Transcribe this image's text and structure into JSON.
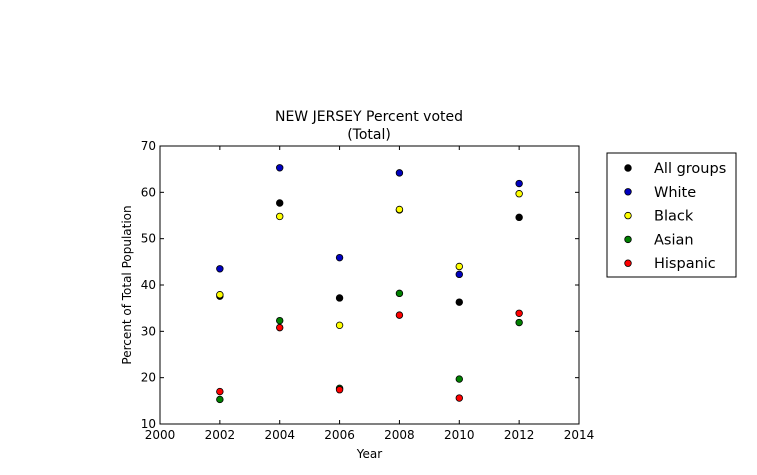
{
  "chart_data": {
    "type": "scatter",
    "title": "NEW JERSEY Percent voted",
    "subtitle": "(Total)",
    "xlabel": "Year",
    "ylabel": "Percent of Total Population",
    "xlim": [
      2000,
      2014
    ],
    "ylim": [
      10,
      70
    ],
    "xticks": [
      2000,
      2002,
      2004,
      2006,
      2008,
      2010,
      2012,
      2014
    ],
    "yticks": [
      10,
      20,
      30,
      40,
      50,
      60,
      70
    ],
    "grid": false,
    "legend": "outside-right",
    "x": [
      2002,
      2004,
      2006,
      2008,
      2010,
      2012
    ],
    "series": [
      {
        "name": "All groups",
        "color": "#000000",
        "values": [
          37.6,
          57.7,
          37.2,
          56.2,
          36.3,
          54.6
        ]
      },
      {
        "name": "White",
        "color": "#0000bf",
        "values": [
          43.5,
          65.3,
          45.9,
          64.2,
          42.3,
          61.9
        ]
      },
      {
        "name": "Black",
        "color": "#ffff00",
        "values": [
          37.9,
          54.8,
          31.3,
          56.3,
          44.0,
          59.7
        ]
      },
      {
        "name": "Asian",
        "color": "#008000",
        "values": [
          15.3,
          32.3,
          17.7,
          38.2,
          19.7,
          31.9
        ]
      },
      {
        "name": "Hispanic",
        "color": "#ff0000",
        "values": [
          17.0,
          30.8,
          17.4,
          33.5,
          15.6,
          33.9
        ]
      }
    ]
  }
}
